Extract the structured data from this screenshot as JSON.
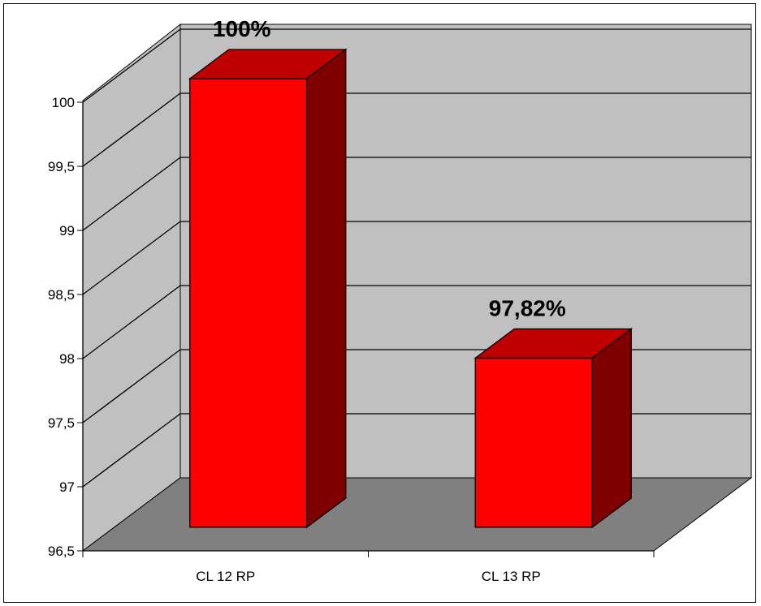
{
  "chart_data": {
    "type": "bar",
    "categories": [
      "CL 12 RP",
      "CL 13 RP"
    ],
    "values": [
      100,
      97.82
    ],
    "data_labels": [
      "100%",
      "97,82%"
    ],
    "ylim": [
      96.5,
      100.5
    ],
    "ticks": [
      {
        "value": 96.5,
        "label": "96,5"
      },
      {
        "value": 97,
        "label": "97"
      },
      {
        "value": 97.5,
        "label": "97,5"
      },
      {
        "value": 98,
        "label": "98"
      },
      {
        "value": 98.5,
        "label": "98,5"
      },
      {
        "value": 99,
        "label": "99"
      },
      {
        "value": 99.5,
        "label": "99,5"
      },
      {
        "value": 100,
        "label": "100"
      }
    ],
    "grid": true,
    "legend": "none",
    "colors": {
      "bar_front": "#ff0000",
      "bar_top": "#c00000",
      "bar_side": "#800000",
      "back_wall": "#c0c0c0",
      "floor": "#808080"
    }
  }
}
